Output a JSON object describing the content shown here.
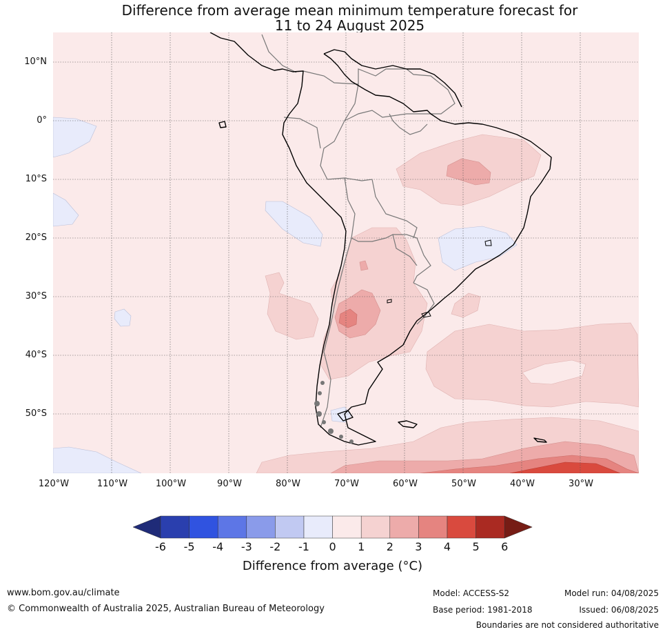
{
  "title_line1": "Difference from average mean minimum temperature forecast for",
  "title_line2": "11 to 24 August 2025",
  "lat_labels": [
    "10°N",
    "0°",
    "10°S",
    "20°S",
    "30°S",
    "40°S",
    "50°S"
  ],
  "lon_labels": [
    "120°W",
    "110°W",
    "100°W",
    "90°W",
    "80°W",
    "70°W",
    "60°W",
    "50°W",
    "40°W",
    "30°W"
  ],
  "colorbar": {
    "ticks": [
      "-6",
      "-5",
      "-4",
      "-3",
      "-2",
      "-1",
      "0",
      "1",
      "2",
      "3",
      "4",
      "5",
      "6"
    ],
    "colors": [
      "#2a3fae",
      "#3053e0",
      "#5d76e6",
      "#8a9bea",
      "#c1c9f2",
      "#e8ebfb",
      "#fbeaea",
      "#f5d2d1",
      "#edabaa",
      "#e58480",
      "#d94a3e",
      "#aa2a22"
    ],
    "under_color": "#1f2b78",
    "over_color": "#761c15",
    "label": "Difference from average (°C)"
  },
  "footer": {
    "website": "www.bom.gov.au/climate",
    "copyright": "© Commonwealth of Australia 2025, Australian Bureau of Meteorology",
    "model": "Model: ACCESS-S2",
    "base_period": "Base period: 1981-2018",
    "model_run": "Model run: 04/08/2025",
    "issued": "Issued: 06/08/2025",
    "disclaimer": "Boundaries are not considered authoritative"
  }
}
